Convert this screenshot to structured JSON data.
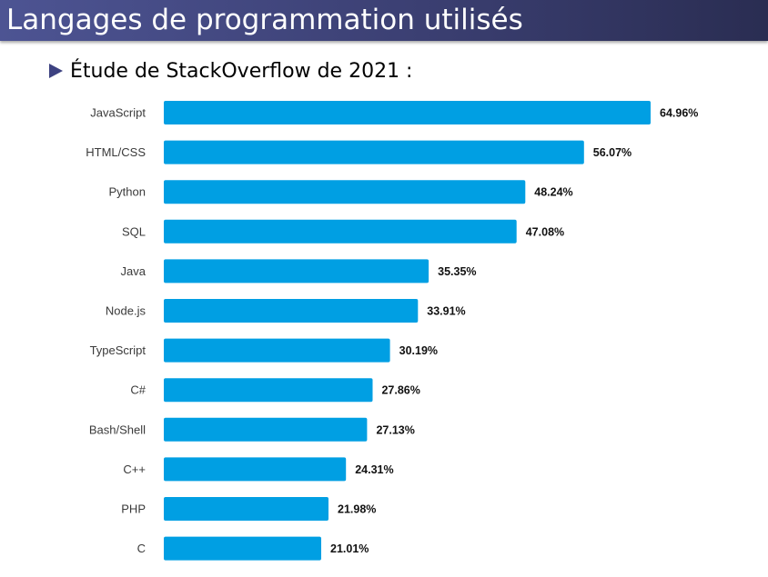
{
  "slide": {
    "title": "Langages de programmation utilisés",
    "bullet": "Étude de StackOverflow de 2021 :"
  },
  "colors": {
    "title_bar": "#3d4281",
    "bar": "#009fe3",
    "bullet": "#3d4281"
  },
  "chart_data": {
    "type": "bar",
    "orientation": "horizontal",
    "categories": [
      "JavaScript",
      "HTML/CSS",
      "Python",
      "SQL",
      "Java",
      "Node.js",
      "TypeScript",
      "C#",
      "Bash/Shell",
      "C++",
      "PHP",
      "C"
    ],
    "values": [
      64.96,
      56.07,
      48.24,
      47.08,
      35.35,
      33.91,
      30.19,
      27.86,
      27.13,
      24.31,
      21.98,
      21.01
    ],
    "value_labels": [
      "64.96%",
      "56.07%",
      "48.24%",
      "47.08%",
      "35.35%",
      "33.91%",
      "30.19%",
      "27.86%",
      "27.13%",
      "24.31%",
      "21.98%",
      "21.01%"
    ],
    "xlim": [
      0,
      64.96
    ],
    "grid": false,
    "legend": "none"
  }
}
